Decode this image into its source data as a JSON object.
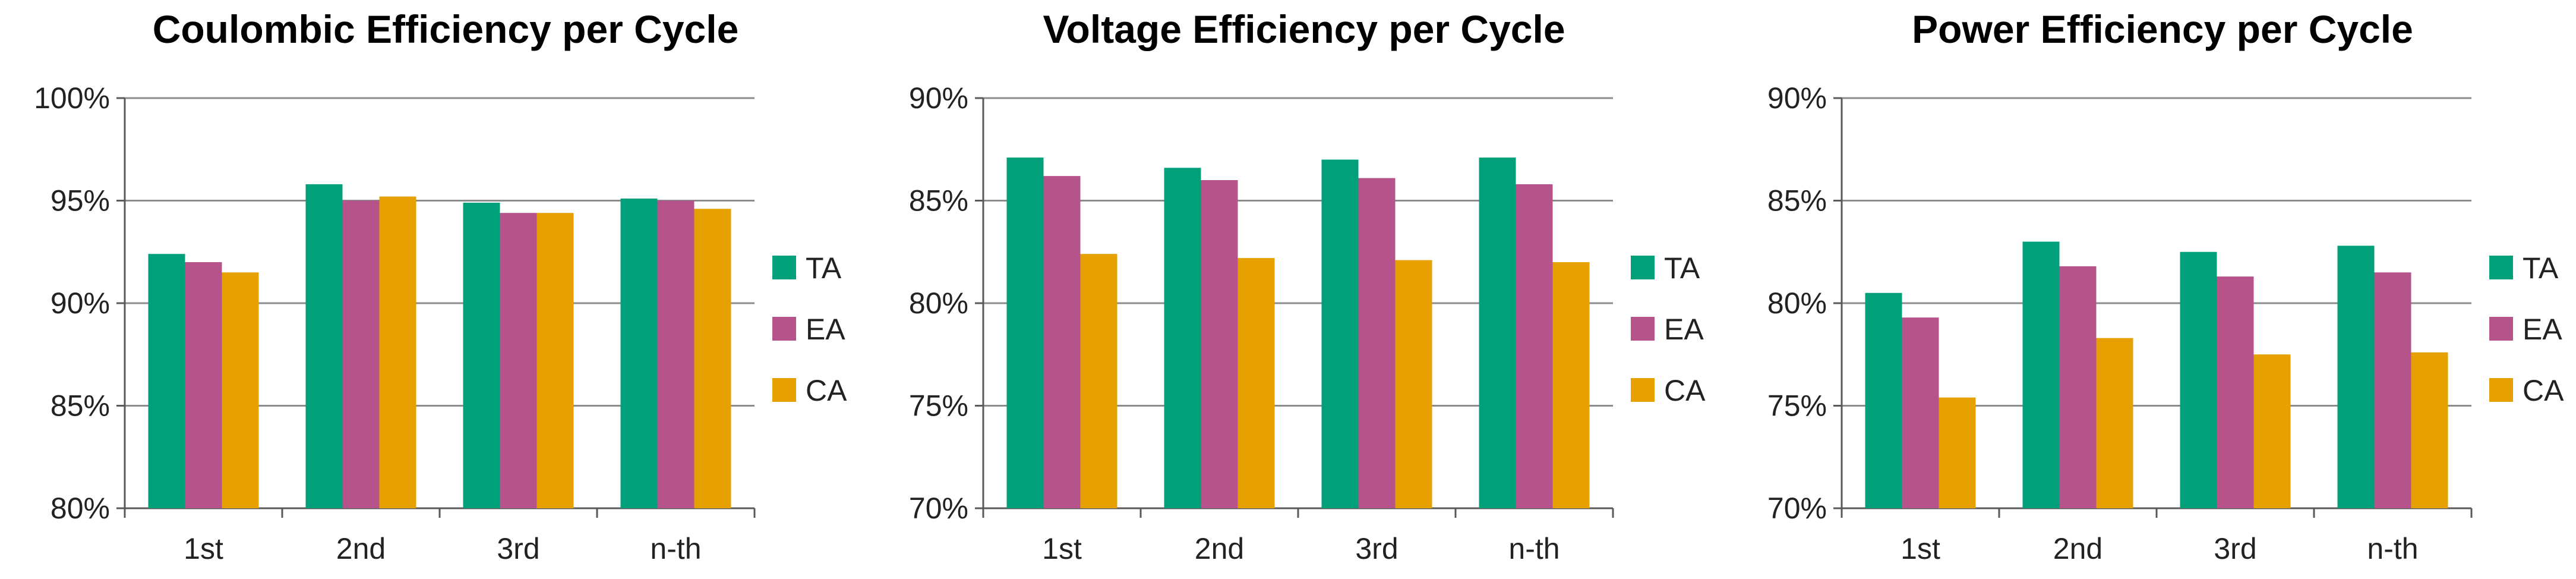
{
  "colors": {
    "TA": "#00A07A",
    "EA": "#B5538A",
    "CA": "#E6A000"
  },
  "chart_data": [
    {
      "type": "bar",
      "title": "Coulombic Efficiency per Cycle",
      "categories": [
        "1st",
        "2nd",
        "3rd",
        "n-th"
      ],
      "series": [
        {
          "name": "TA",
          "values": [
            92.4,
            95.8,
            94.9,
            95.1
          ]
        },
        {
          "name": "EA",
          "values": [
            92.0,
            95.0,
            94.4,
            95.0
          ]
        },
        {
          "name": "CA",
          "values": [
            91.5,
            95.2,
            94.4,
            94.6
          ]
        }
      ],
      "ylim": [
        80,
        100
      ],
      "ytick_labels": [
        "80%",
        "85%",
        "90%",
        "95%",
        "100%"
      ],
      "yticks": [
        80,
        85,
        90,
        95,
        100
      ],
      "xlabel": "",
      "ylabel": "",
      "legend": "right"
    },
    {
      "type": "bar",
      "title": "Voltage Efficiency per Cycle",
      "categories": [
        "1st",
        "2nd",
        "3rd",
        "n-th"
      ],
      "series": [
        {
          "name": "TA",
          "values": [
            87.1,
            86.6,
            87.0,
            87.1
          ]
        },
        {
          "name": "EA",
          "values": [
            86.2,
            86.0,
            86.1,
            85.8
          ]
        },
        {
          "name": "CA",
          "values": [
            82.4,
            82.2,
            82.1,
            82.0
          ]
        }
      ],
      "ylim": [
        70,
        90
      ],
      "ytick_labels": [
        "70%",
        "75%",
        "80%",
        "85%",
        "90%"
      ],
      "yticks": [
        70,
        75,
        80,
        85,
        90
      ],
      "xlabel": "",
      "ylabel": "",
      "legend": "right"
    },
    {
      "type": "bar",
      "title": "Power Efficiency per Cycle",
      "categories": [
        "1st",
        "2nd",
        "3rd",
        "n-th"
      ],
      "series": [
        {
          "name": "TA",
          "values": [
            80.5,
            83.0,
            82.5,
            82.8
          ]
        },
        {
          "name": "EA",
          "values": [
            79.3,
            81.8,
            81.3,
            81.5
          ]
        },
        {
          "name": "CA",
          "values": [
            75.4,
            78.3,
            77.5,
            77.6
          ]
        }
      ],
      "ylim": [
        70,
        90
      ],
      "ytick_labels": [
        "70%",
        "75%",
        "80%",
        "85%",
        "90%"
      ],
      "yticks": [
        70,
        75,
        80,
        85,
        90
      ],
      "xlabel": "",
      "ylabel": "",
      "legend": "right"
    }
  ]
}
